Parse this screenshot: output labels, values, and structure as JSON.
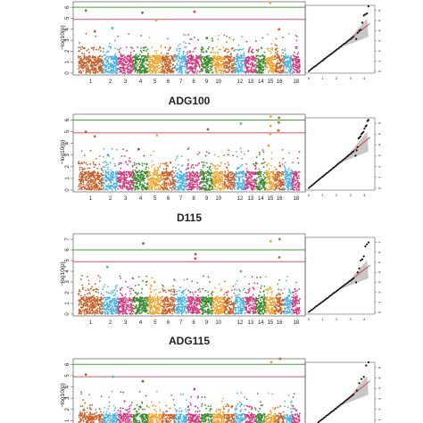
{
  "figure": {
    "panel_titles": [
      "ADG100",
      "D115",
      "ADG115"
    ],
    "manhattan_ylabel": "−log10(p)",
    "manhattan_xticks": [
      "1",
      "2",
      "3",
      "4",
      "5",
      "6",
      "7",
      "8",
      "9",
      "10",
      "12",
      "13",
      "14",
      "15",
      "16",
      "18"
    ],
    "qq_xticks": [
      "0",
      "1",
      "2",
      "3",
      "4"
    ],
    "chromosome_colors": [
      "#c8602a",
      "#4ab3e6",
      "#d43a7e",
      "#3b8a2e",
      "#f3a12b"
    ]
  },
  "chart_data": [
    {
      "type": "scatter",
      "title": "",
      "xlabel": "",
      "ylabel": "−log10(p)",
      "ylim": [
        0,
        6.5
      ],
      "yticks": [
        "0",
        "1",
        "2",
        "3",
        "4",
        "5",
        "6"
      ],
      "threshold_lines": [
        {
          "value": 6.0,
          "color": "#3aa83a"
        },
        {
          "value": 4.9,
          "color": "#e0506a"
        }
      ],
      "peaks": [
        {
          "x": 1,
          "y": 5.7
        },
        {
          "x": 1,
          "y": 3.8
        },
        {
          "x": 2,
          "y": 4.1
        },
        {
          "x": 4,
          "y": 5.5
        },
        {
          "x": 5,
          "y": 4.8
        },
        {
          "x": 8,
          "y": 5.6
        },
        {
          "x": 9,
          "y": 3.2
        },
        {
          "x": 15,
          "y": 6.4
        },
        {
          "x": 16,
          "y": 4.0
        }
      ],
      "qq": {
        "xlim": [
          0,
          4.5
        ],
        "ylim": [
          0,
          6.5
        ],
        "yticks": [
          "0",
          "1",
          "2",
          "3",
          "4",
          "5",
          "6"
        ]
      }
    },
    {
      "type": "scatter",
      "title": "ADG100",
      "xlabel": "",
      "ylabel": "−log10(p)",
      "ylim": [
        0,
        6.5
      ],
      "yticks": [
        "0",
        "1",
        "2",
        "3",
        "4",
        "5",
        "6"
      ],
      "threshold_lines": [
        {
          "value": 6.0,
          "color": "#3aa83a"
        },
        {
          "value": 4.9,
          "color": "#e0506a"
        }
      ],
      "peaks": [
        {
          "x": 1,
          "y": 5.0
        },
        {
          "x": 1,
          "y": 4.6
        },
        {
          "x": 5,
          "y": 4.7
        },
        {
          "x": 9,
          "y": 5.2
        },
        {
          "x": 12,
          "y": 5.7
        },
        {
          "x": 15,
          "y": 6.3
        },
        {
          "x": 15,
          "y": 5.5
        },
        {
          "x": 15,
          "y": 4.8
        },
        {
          "x": 16,
          "y": 6.2
        },
        {
          "x": 16,
          "y": 5.8
        },
        {
          "x": 16,
          "y": 5.1
        },
        {
          "x": 4,
          "y": 3.5
        },
        {
          "x": 2,
          "y": 3.0
        },
        {
          "x": 15,
          "y": 3.8
        }
      ],
      "qq": {
        "xlim": [
          0,
          4.5
        ],
        "ylim": [
          0,
          6.5
        ],
        "yticks": [
          "0",
          "1",
          "2",
          "3",
          "4",
          "5",
          "6"
        ]
      }
    },
    {
      "type": "scatter",
      "title": "D115",
      "xlabel": "",
      "ylabel": "−log10(p)",
      "ylim": [
        0,
        7.5
      ],
      "yticks": [
        "0",
        "1",
        "2",
        "3",
        "4",
        "5",
        "6",
        "7"
      ],
      "threshold_lines": [
        {
          "value": 6.0,
          "color": "#3aa83a"
        },
        {
          "value": 4.9,
          "color": "#e0506a"
        }
      ],
      "peaks": [
        {
          "x": 2,
          "y": 4.4
        },
        {
          "x": 4,
          "y": 6.6
        },
        {
          "x": 8,
          "y": 5.6
        },
        {
          "x": 8,
          "y": 5.2
        },
        {
          "x": 12,
          "y": 4.0
        },
        {
          "x": 15,
          "y": 6.8
        },
        {
          "x": 16,
          "y": 7.0
        },
        {
          "x": 16,
          "y": 5.3
        },
        {
          "x": 5,
          "y": 3.0
        }
      ],
      "qq": {
        "xlim": [
          0,
          4.5
        ],
        "ylim": [
          0,
          7.5
        ],
        "yticks": [
          "0",
          "1",
          "2",
          "3",
          "4",
          "5",
          "6",
          "7"
        ]
      }
    },
    {
      "type": "scatter",
      "title": "ADG115",
      "xlabel": "",
      "ylabel": "−log10(p)",
      "ylim": [
        0,
        6.5
      ],
      "yticks": [
        "0",
        "1",
        "2",
        "3",
        "4",
        "5",
        "6"
      ],
      "threshold_lines": [
        {
          "value": 6.0,
          "color": "#3aa83a"
        },
        {
          "value": 4.9,
          "color": "#e0506a"
        }
      ],
      "peaks": [
        {
          "x": 1,
          "y": 5.1
        },
        {
          "x": 2,
          "y": 4.9
        },
        {
          "x": 4,
          "y": 4.5
        },
        {
          "x": 15,
          "y": 6.2
        },
        {
          "x": 16,
          "y": 6.5
        },
        {
          "x": 8,
          "y": 3.8
        }
      ],
      "qq": {
        "xlim": [
          0,
          4.5
        ],
        "ylim": [
          0,
          6.5
        ],
        "yticks": [
          "0",
          "1",
          "2",
          "3",
          "4",
          "5",
          "6"
        ]
      }
    }
  ]
}
